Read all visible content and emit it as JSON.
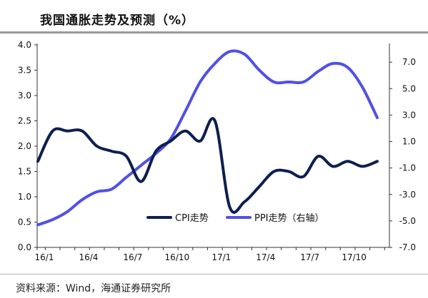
{
  "header": {
    "title": "我国通胀走势及预测（%）"
  },
  "footer": {
    "source": "资料来源：Wind，海通证券研究所"
  },
  "chart_data": {
    "type": "line",
    "title": "我国通胀走势及预测（%）",
    "x_tick_labels": [
      "16/1",
      "16/4",
      "16/7",
      "16/10",
      "17/1",
      "17/4",
      "17/7",
      "17/10"
    ],
    "x": [
      "16/1",
      "16/2",
      "16/3",
      "16/4",
      "16/5",
      "16/6",
      "16/7",
      "16/8",
      "16/9",
      "16/10",
      "16/11",
      "16/12",
      "17/1",
      "17/2",
      "17/3",
      "17/4",
      "17/5",
      "17/6",
      "17/7",
      "17/8",
      "17/9",
      "17/10",
      "17/11",
      "17/12"
    ],
    "y_left": {
      "ticks": [
        "0.0",
        "0.5",
        "1.0",
        "1.5",
        "2.0",
        "2.5",
        "3.0",
        "3.5",
        "4.0"
      ],
      "range": [
        0,
        4
      ]
    },
    "y_right": {
      "ticks": [
        "-7.0",
        "-5.0",
        "-3.0",
        "-1.0",
        "1.0",
        "3.0",
        "5.0",
        "7.0"
      ],
      "range": [
        -7,
        8.3
      ]
    },
    "series": [
      {
        "name": "CPI走势",
        "axis": "left",
        "color": "#0d1f4f",
        "values": [
          1.7,
          2.3,
          2.3,
          2.3,
          2.0,
          1.9,
          1.8,
          1.3,
          1.9,
          2.1,
          2.3,
          2.1,
          2.5,
          0.8,
          0.9,
          1.2,
          1.5,
          1.5,
          1.4,
          1.8,
          1.6,
          1.7,
          1.6,
          1.7
        ]
      },
      {
        "name": "PPI走势（右轴）",
        "axis": "right",
        "color": "#5050e6",
        "values": [
          -5.3,
          -4.9,
          -4.3,
          -3.4,
          -2.8,
          -2.6,
          -1.7,
          -0.8,
          0.1,
          1.2,
          3.3,
          5.5,
          6.9,
          7.8,
          7.6,
          6.4,
          5.5,
          5.5,
          5.5,
          6.3,
          6.9,
          6.6,
          5.1,
          2.8
        ]
      }
    ]
  }
}
